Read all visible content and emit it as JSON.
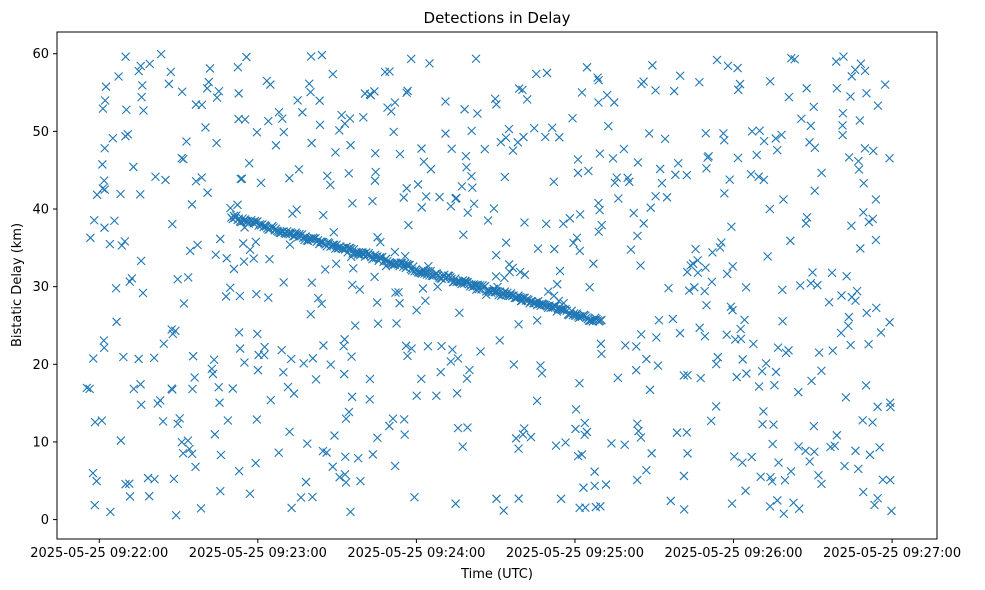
{
  "chart_data": {
    "type": "scatter",
    "title": "Detections in Delay",
    "xlabel": "Time (UTC)",
    "ylabel": "Bistatic Delay (km)",
    "marker": "x",
    "color": "#1f77b4",
    "grid": false,
    "legend": "none",
    "x_axis_type": "time",
    "xlim": [
      "2025-05-25 09:21:44",
      "2025-05-25 09:27:17"
    ],
    "ylim": [
      -2.5,
      62.8
    ],
    "x_ticks": [
      "2025-05-25 09:22:00",
      "2025-05-25 09:23:00",
      "2025-05-25 09:24:00",
      "2025-05-25 09:25:00",
      "2025-05-25 09:26:00",
      "2025-05-25 09:27:00"
    ],
    "y_ticks": [
      "0",
      "10",
      "20",
      "30",
      "40",
      "50",
      "60"
    ],
    "series": [
      {
        "description_visible": "Linear track of detections from ~39 km at 09:22:50 to ~25.5 km at 09:25:10",
        "x_start": "2025-05-25 09:22:50",
        "x_end": "2025-05-25 09:25:10",
        "y_start": 39.0,
        "y_end": 25.5
      },
      {
        "description_visible": "Scattered clutter detections across the full window",
        "x_range": [
          "2025-05-25 09:21:55",
          "2025-05-25 09:27:00"
        ],
        "y_range": [
          0.5,
          60.0
        ]
      }
    ]
  }
}
